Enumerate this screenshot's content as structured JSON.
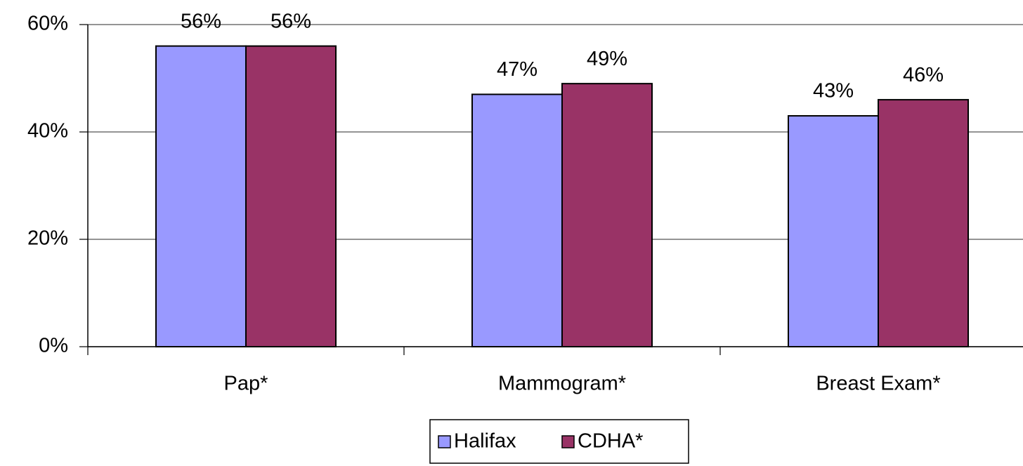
{
  "chart_data": {
    "type": "bar",
    "categories": [
      "Pap*",
      "Mammogram*",
      "Breast Exam*"
    ],
    "series": [
      {
        "name": "Halifax",
        "color": "#9999ff",
        "values": [
          56,
          47,
          43
        ],
        "value_labels": [
          "56%",
          "47%",
          "43%"
        ]
      },
      {
        "name": "CDHA*",
        "color": "#993366",
        "values": [
          56,
          49,
          46
        ],
        "value_labels": [
          "56%",
          "49%",
          "46%"
        ]
      }
    ],
    "ylim": [
      0,
      60
    ],
    "yticks": [
      {
        "value": 0,
        "label": "0%"
      },
      {
        "value": 20,
        "label": "20%"
      },
      {
        "value": 40,
        "label": "40%"
      },
      {
        "value": 60,
        "label": "60%"
      }
    ],
    "grid": true,
    "legend": "bottom"
  }
}
